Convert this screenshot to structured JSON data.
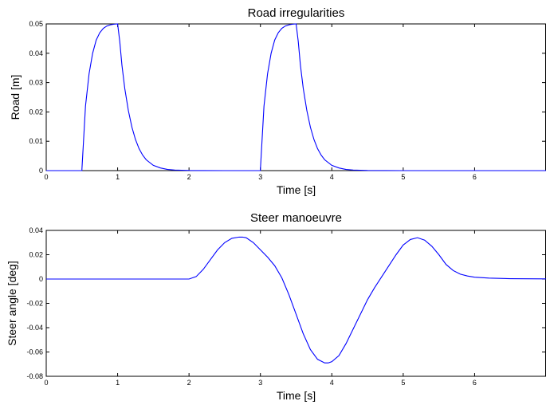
{
  "chart_data": [
    {
      "type": "line",
      "title": "Road irregularities",
      "xlabel": "Time [s]",
      "ylabel": "Road [m]",
      "xlim": [
        0,
        7
      ],
      "ylim": [
        0,
        0.05
      ],
      "xticks": [
        0,
        1,
        2,
        3,
        4,
        5,
        6
      ],
      "xtick_labels": [
        "0",
        "1",
        "2",
        "3",
        "4",
        "5",
        "6"
      ],
      "yticks": [
        0,
        0.01,
        0.02,
        0.03,
        0.04,
        0.05
      ],
      "ytick_labels": [
        "0",
        "0.01",
        "0.02",
        "0.03",
        "0.04",
        "0.05"
      ],
      "grid": false,
      "series": [
        {
          "color": "#0000ff",
          "x": [
            0,
            0.5,
            0.5,
            0.55,
            0.6,
            0.65,
            0.7,
            0.75,
            0.8,
            0.85,
            0.9,
            0.95,
            1.0,
            1.03,
            1.06,
            1.1,
            1.15,
            1.2,
            1.25,
            1.3,
            1.35,
            1.4,
            1.5,
            1.6,
            1.7,
            1.8,
            2.0,
            2.5,
            3.0,
            3.0,
            3.05,
            3.1,
            3.15,
            3.2,
            3.25,
            3.3,
            3.35,
            3.4,
            3.45,
            3.5,
            3.53,
            3.56,
            3.6,
            3.65,
            3.7,
            3.75,
            3.8,
            3.85,
            3.9,
            4.0,
            4.1,
            4.2,
            4.3,
            4.5,
            5.0,
            6.0,
            7.0
          ],
          "y": [
            0,
            0,
            0.0005,
            0.022,
            0.033,
            0.04,
            0.0445,
            0.047,
            0.0485,
            0.0493,
            0.0497,
            0.0499,
            0.05,
            0.044,
            0.036,
            0.028,
            0.0205,
            0.0148,
            0.0106,
            0.0075,
            0.0053,
            0.0037,
            0.0018,
            0.0009,
            0.0004,
            0.0002,
            5e-05,
            0,
            0,
            0.0005,
            0.022,
            0.033,
            0.04,
            0.0445,
            0.047,
            0.0485,
            0.0493,
            0.0497,
            0.0499,
            0.05,
            0.044,
            0.036,
            0.028,
            0.0205,
            0.0148,
            0.0106,
            0.0075,
            0.0053,
            0.0037,
            0.0018,
            0.0009,
            0.0004,
            0.0002,
            5e-05,
            0,
            0,
            0
          ]
        }
      ]
    },
    {
      "type": "line",
      "title": "Steer manoeuvre",
      "xlabel": "Time [s]",
      "ylabel": "Steer angle [deg]",
      "xlim": [
        0,
        7
      ],
      "ylim": [
        -0.08,
        0.04
      ],
      "xticks": [
        0,
        1,
        2,
        3,
        4,
        5,
        6
      ],
      "xtick_labels": [
        "0",
        "1",
        "2",
        "3",
        "4",
        "5",
        "6"
      ],
      "yticks": [
        -0.08,
        -0.06,
        -0.04,
        -0.02,
        0,
        0.02,
        0.04
      ],
      "ytick_labels": [
        "-0.08",
        "-0.06",
        "-0.04",
        "-0.02",
        "0",
        "0.02",
        "0.04"
      ],
      "grid": false,
      "series": [
        {
          "color": "#0000ff",
          "x": [
            0,
            1.0,
            2.0,
            2.1,
            2.2,
            2.3,
            2.4,
            2.5,
            2.6,
            2.7,
            2.75,
            2.8,
            2.9,
            3.0,
            3.1,
            3.2,
            3.3,
            3.4,
            3.5,
            3.6,
            3.7,
            3.8,
            3.9,
            3.95,
            4.0,
            4.1,
            4.2,
            4.3,
            4.4,
            4.5,
            4.6,
            4.7,
            4.8,
            4.9,
            5.0,
            5.1,
            5.2,
            5.3,
            5.4,
            5.5,
            5.6,
            5.7,
            5.8,
            5.9,
            6.0,
            6.2,
            6.5,
            7.0
          ],
          "y": [
            0,
            0,
            0,
            0.002,
            0.008,
            0.016,
            0.024,
            0.03,
            0.0335,
            0.0345,
            0.0345,
            0.034,
            0.03,
            0.024,
            0.018,
            0.011,
            0.001,
            -0.013,
            -0.029,
            -0.045,
            -0.058,
            -0.066,
            -0.069,
            -0.069,
            -0.068,
            -0.063,
            -0.053,
            -0.041,
            -0.029,
            -0.017,
            -0.007,
            0.002,
            0.011,
            0.02,
            0.028,
            0.0325,
            0.034,
            0.032,
            0.027,
            0.02,
            0.012,
            0.007,
            0.004,
            0.0025,
            0.0015,
            0.0008,
            0.0003,
            0.0001
          ]
        }
      ]
    }
  ]
}
